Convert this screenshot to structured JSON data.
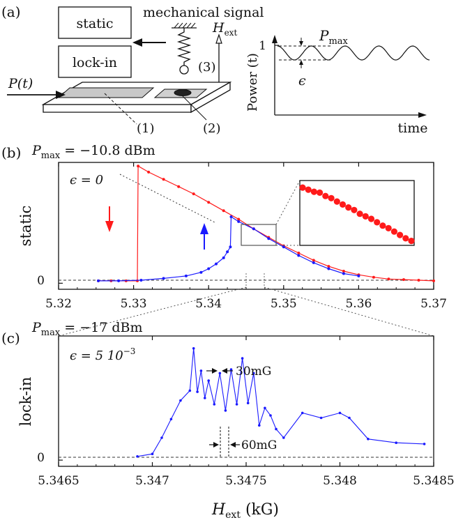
{
  "panel_a": {
    "label": "(a)",
    "box_static": "static",
    "box_lockin": "lock-in",
    "mechanical_signal": "mechanical signal",
    "h_ext": "H",
    "h_ext_sub": "ext",
    "p_t": "P(t)",
    "num1": "(1)",
    "num2": "(2)",
    "num3": "(3)",
    "power_axis": "Power (t)",
    "power_tick": "1",
    "time_label": "time",
    "pmax": "P",
    "pmax_sub": "max",
    "epsilon": "ϵ"
  },
  "panel_b": {
    "label": "(b)",
    "pmax_title": "P",
    "pmax_sub": "max",
    "pmax_value": " = −10.8 dBm",
    "epsilon_label": "ϵ = 0",
    "ylabel": "static",
    "ytick": "0",
    "xticks": [
      "5.32",
      "5.33",
      "5.34",
      "5.35",
      "5.36",
      "5.37"
    ]
  },
  "panel_c": {
    "label": "(c)",
    "pmax_title": "P",
    "pmax_sub": "max",
    "pmax_value": " = −17 dBm",
    "epsilon_label": "ϵ = 5 10",
    "epsilon_exp": "−3",
    "ylabel": "lock-in",
    "ytick": "0",
    "xticks": [
      "5.3465",
      "5.347",
      "5.3475",
      "5.348",
      "5.3485"
    ],
    "annot_30": "30mG",
    "annot_60": "60mG",
    "xlabel": "H",
    "xlabel_sub": "ext",
    "xlabel_unit": " (kG)"
  },
  "colors": {
    "red": "#ff1a1a",
    "blue": "#1a1aff",
    "axis": "#111111"
  },
  "chart_data": [
    {
      "type": "line",
      "title": "P_max = −10.8 dBm",
      "xlabel": "",
      "ylabel": "static",
      "xlim": [
        5.32,
        5.37
      ],
      "ylim": [
        -0.05,
        1.0
      ],
      "series": [
        {
          "name": "sweep down",
          "color": "#ff1a1a",
          "x": [
            5.3253,
            5.327,
            5.329,
            5.3305,
            5.3306,
            5.332,
            5.334,
            5.336,
            5.338,
            5.34,
            5.342,
            5.344,
            5.346,
            5.348,
            5.35,
            5.352,
            5.354,
            5.356,
            5.358,
            5.36,
            5.362,
            5.364,
            5.366,
            5.368,
            5.37
          ],
          "y": [
            0.02,
            0.02,
            0.02,
            0.02,
            0.97,
            0.92,
            0.86,
            0.8,
            0.74,
            0.67,
            0.6,
            0.53,
            0.45,
            0.38,
            0.31,
            0.25,
            0.19,
            0.14,
            0.1,
            0.07,
            0.05,
            0.035,
            0.03,
            0.025,
            0.02
          ]
        },
        {
          "name": "sweep up",
          "color": "#1a1aff",
          "x": [
            5.3253,
            5.328,
            5.331,
            5.334,
            5.337,
            5.339,
            5.34,
            5.341,
            5.342,
            5.3425,
            5.3429,
            5.343,
            5.344,
            5.346,
            5.348,
            5.35,
            5.352,
            5.354,
            5.356,
            5.358,
            5.36
          ],
          "y": [
            0.02,
            0.02,
            0.025,
            0.04,
            0.06,
            0.09,
            0.12,
            0.16,
            0.21,
            0.26,
            0.3,
            0.55,
            0.51,
            0.45,
            0.37,
            0.3,
            0.23,
            0.17,
            0.12,
            0.08,
            0.06
          ]
        }
      ],
      "inset": {
        "x": [
          5.3443,
          5.3446,
          5.3449,
          5.3452,
          5.3455,
          5.3458,
          5.3461,
          5.3464,
          5.3467,
          5.347,
          5.3473,
          5.3476,
          5.3479,
          5.3482,
          5.3485,
          5.3488,
          5.3491,
          5.3494,
          5.3497,
          5.35
        ],
        "y": [
          0.53,
          0.525,
          0.52,
          0.518,
          0.51,
          0.505,
          0.497,
          0.49,
          0.483,
          0.477,
          0.468,
          0.462,
          0.456,
          0.448,
          0.44,
          0.434,
          0.426,
          0.418,
          0.41,
          0.404
        ]
      }
    },
    {
      "type": "line",
      "title": "P_max = −17 dBm",
      "xlabel": "H_ext (kG)",
      "ylabel": "lock-in",
      "xlim": [
        5.3465,
        5.3485
      ],
      "ylim": [
        -0.05,
        1.0
      ],
      "series": [
        {
          "name": "lock-in",
          "color": "#1a1aff",
          "x": [
            5.34692,
            5.347,
            5.34705,
            5.3471,
            5.34715,
            5.3472,
            5.34722,
            5.34724,
            5.34726,
            5.34728,
            5.3473,
            5.34733,
            5.34736,
            5.34739,
            5.34742,
            5.34745,
            5.34748,
            5.34751,
            5.34754,
            5.34757,
            5.3476,
            5.34763,
            5.34766,
            5.3477,
            5.3478,
            5.3479,
            5.348,
            5.34805,
            5.34815,
            5.3483,
            5.34845
          ],
          "y": [
            0.03,
            0.05,
            0.18,
            0.33,
            0.48,
            0.56,
            0.9,
            0.55,
            0.72,
            0.5,
            0.64,
            0.45,
            0.7,
            0.4,
            0.73,
            0.45,
            0.82,
            0.46,
            0.7,
            0.28,
            0.42,
            0.36,
            0.25,
            0.18,
            0.38,
            0.34,
            0.38,
            0.34,
            0.17,
            0.14,
            0.13
          ]
        }
      ]
    }
  ]
}
